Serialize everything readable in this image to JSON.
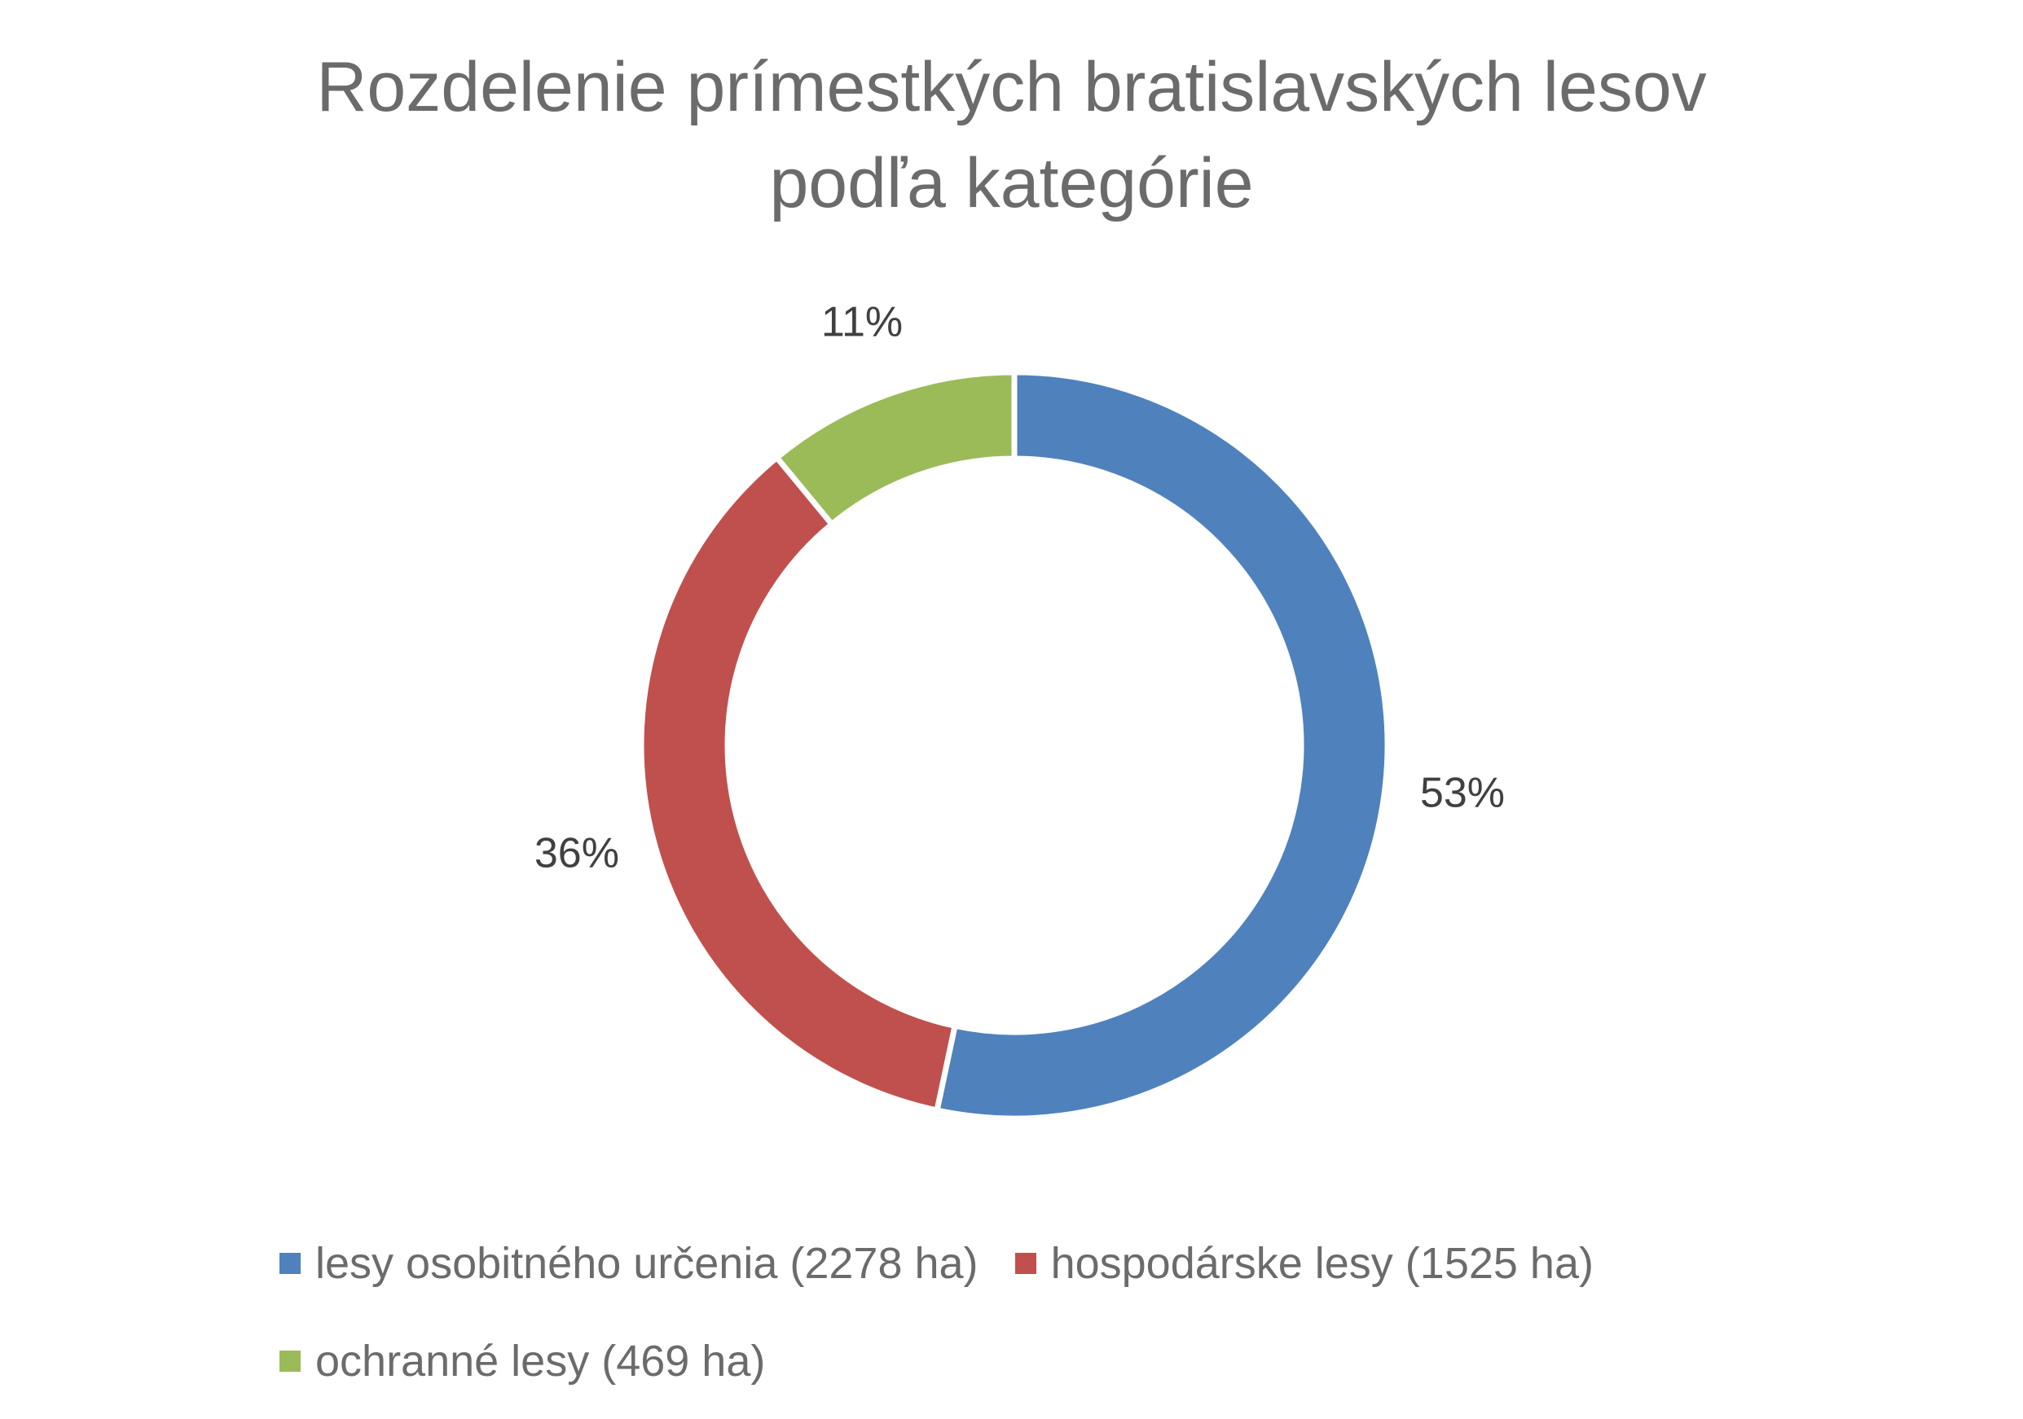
{
  "chart_data": {
    "type": "pie",
    "subtype": "doughnut",
    "title": "Rozdelenie prímestkých bratislavských lesov podľa kategórie",
    "title_lines": [
      "Rozdelenie prímestkých bratislavských lesov",
      "podľa kategórie"
    ],
    "categories": [
      "lesy osobitného určenia (2278 ha)",
      "hospodárske lesy (1525 ha)",
      "ochranné lesy (469 ha)"
    ],
    "values": [
      2278,
      1525,
      469
    ],
    "percent_labels": [
      "53%",
      "36%",
      "11%"
    ],
    "colors": [
      "#4f81bd",
      "#c0504d",
      "#9bbb59"
    ],
    "legend_position": "bottom",
    "grid": false
  }
}
